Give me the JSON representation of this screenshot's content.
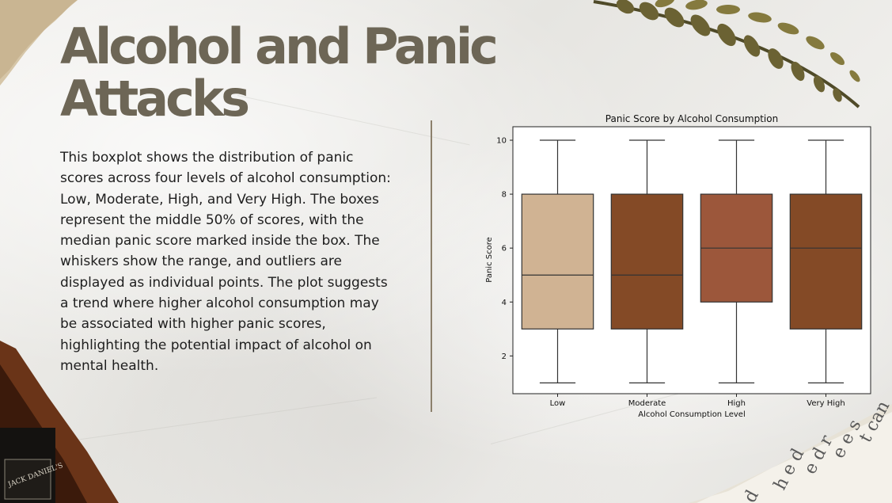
{
  "slide": {
    "title": "Alcohol and Panic Attacks",
    "description": "This boxplot shows the distribution of panic scores across four levels of alcohol consumption: Low, Moderate, High, and Very High. The boxes represent the middle 50% of scores, with the median panic score marked inside the box. The whiskers show the range, and outliers are displayed as individual points. The plot suggests a trend where higher alcohol consumption may be associated with higher panic scores, highlighting the potential impact of alcohol on mental health."
  },
  "decor": {
    "bottle_label": "JACK DANIEL'S",
    "clipping_lines": [
      "t can",
      "e e s",
      "e d r",
      "h e d",
      "d"
    ]
  },
  "colors": {
    "title": "#6d6656",
    "divider": "#8c806c",
    "box_low": "#d0b393",
    "box_moderate": "#844a26",
    "box_high": "#9c573b",
    "box_very_high": "#844a26"
  },
  "chart_data": {
    "type": "box",
    "title": "Panic Score by Alcohol Consumption",
    "xlabel": "Alcohol Consumption Level",
    "ylabel": "Panic Score",
    "categories": [
      "Low",
      "Moderate",
      "High",
      "Very High"
    ],
    "ylim": [
      0.6,
      10.5
    ],
    "yticks": [
      2,
      4,
      6,
      8,
      10
    ],
    "boxes": [
      {
        "category": "Low",
        "min": 1,
        "q1": 3,
        "median": 5,
        "q3": 8,
        "max": 10
      },
      {
        "category": "Moderate",
        "min": 1,
        "q1": 3,
        "median": 5,
        "q3": 8,
        "max": 10
      },
      {
        "category": "High",
        "min": 1,
        "q1": 4,
        "median": 6,
        "q3": 8,
        "max": 10
      },
      {
        "category": "Very High",
        "min": 1,
        "q1": 3,
        "median": 6,
        "q3": 8,
        "max": 10
      }
    ],
    "grid": false,
    "legend": "none"
  }
}
